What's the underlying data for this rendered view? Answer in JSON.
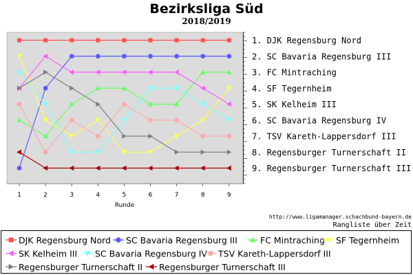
{
  "header": {
    "title": "Bezirksliga Süd",
    "subtitle": "2018/2019"
  },
  "footer": {
    "url": "http://www.ligamanager.schachbund-bayern.de",
    "caption": "Rangliste über Zeit"
  },
  "chart_data": {
    "type": "line",
    "title": "Bezirksliga Süd",
    "subtitle": "2018/2019",
    "xlabel": "Runde",
    "ylabel": "",
    "x": [
      1,
      2,
      3,
      4,
      5,
      6,
      7,
      8,
      9
    ],
    "xlim": [
      0.6,
      9.5
    ],
    "ylim": [
      1,
      9
    ],
    "y_inverted": true,
    "grid": false,
    "background": "#dcdcdc",
    "right_axis_labels": [
      "1. DJK Regensburg Nord",
      "2. SC Bavaria Regensburg III",
      "3. FC Mintraching",
      "4. SF Tegernheim",
      "5. SK Kelheim III",
      "6. SC Bavaria Regensburg IV",
      "7. TSV Kareth-Lappersdorf III",
      "8. Regensburger Turnerschaft II",
      "9. Regensburger Turnerschaft III"
    ],
    "legend_position": "bottom",
    "series": [
      {
        "name": "DJK Regensburg Nord",
        "color": "#ff5050",
        "marker": "square",
        "values": [
          1,
          1,
          1,
          1,
          1,
          1,
          1,
          1,
          1
        ]
      },
      {
        "name": "SC Bavaria Regensburg III",
        "color": "#5a5aff",
        "marker": "circle",
        "values": [
          9,
          4,
          2,
          2,
          2,
          2,
          2,
          2,
          2
        ]
      },
      {
        "name": "FC Mintraching",
        "color": "#64ff64",
        "marker": "triangle-up",
        "values": [
          6,
          7,
          5,
          4,
          4,
          5,
          5,
          3,
          3
        ]
      },
      {
        "name": "SF Tegernheim",
        "color": "#ffff55",
        "marker": "triangle-down",
        "values": [
          2,
          6,
          7,
          6,
          8,
          8,
          7,
          6,
          4
        ]
      },
      {
        "name": "SK Kelheim III",
        "color": "#ff5aff",
        "marker": "triangle-left",
        "values": [
          4,
          2,
          3,
          3,
          3,
          3,
          3,
          4,
          5
        ]
      },
      {
        "name": "SC Bavaria Regensburg IV",
        "color": "#7affff",
        "marker": "triangle-down",
        "values": [
          3,
          5,
          8,
          8,
          6,
          4,
          4,
          5,
          6
        ]
      },
      {
        "name": "TSV Kareth-Lappersdorf III",
        "color": "#ffaaaa",
        "marker": "circle",
        "values": [
          5,
          8,
          6,
          7,
          5,
          6,
          6,
          7,
          7
        ]
      },
      {
        "name": "Regensburger Turnerschaft II",
        "color": "#808080",
        "marker": "triangle-right",
        "values": [
          4,
          3,
          4,
          5,
          7,
          7,
          8,
          8,
          8
        ]
      },
      {
        "name": "Regensburger Turnerschaft III",
        "color": "#aa0000",
        "marker": "triangle-left",
        "values": [
          8,
          9,
          9,
          9,
          9,
          9,
          9,
          9,
          9
        ]
      }
    ]
  }
}
